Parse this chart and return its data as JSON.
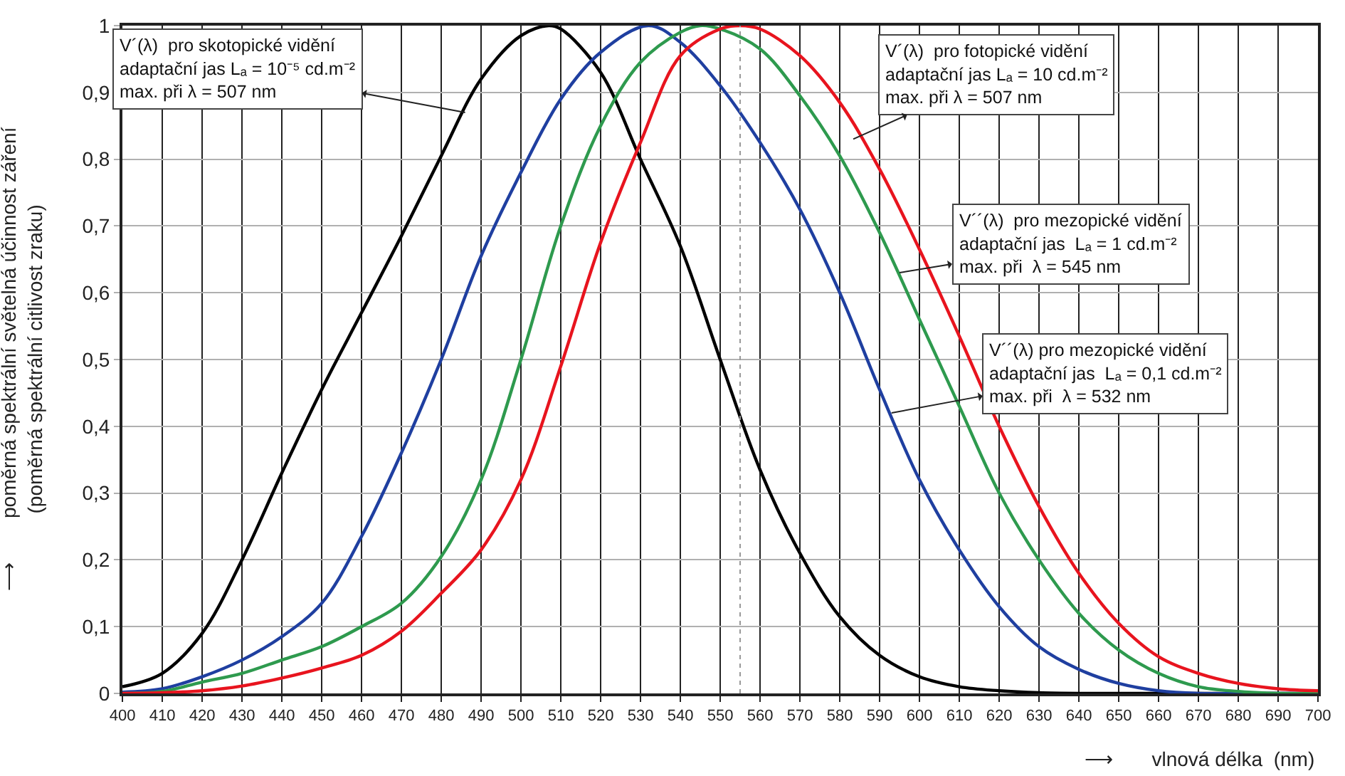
{
  "chart_data": {
    "type": "line",
    "xlabel": "⟶       vlnová délka  (nm)",
    "ylabel": "⟶        poměrná spektrální světelná účinnost záření\n(poměrná spektrální citlivost zraku)",
    "series": [
      {
        "color": "#000000",
        "x": [
          400,
          410,
          420,
          430,
          440,
          450,
          460,
          470,
          480,
          490,
          500,
          507,
          510,
          520,
          530,
          540,
          550,
          560,
          570,
          580,
          590,
          600,
          610,
          620,
          630,
          640,
          650,
          660,
          670,
          680,
          690,
          700
        ],
        "values": [
          0.01,
          0.03,
          0.09,
          0.2,
          0.33,
          0.455,
          0.57,
          0.685,
          0.805,
          0.92,
          0.985,
          1.0,
          0.995,
          0.93,
          0.8,
          0.67,
          0.5,
          0.335,
          0.21,
          0.115,
          0.057,
          0.025,
          0.01,
          0.004,
          0.001,
          0,
          0,
          0,
          0,
          0,
          0,
          0
        ]
      },
      {
        "color": "#1f3fa0",
        "x": [
          400,
          410,
          420,
          430,
          440,
          450,
          460,
          470,
          480,
          490,
          500,
          510,
          520,
          532,
          540,
          550,
          560,
          570,
          580,
          590,
          600,
          610,
          620,
          630,
          640,
          650,
          660,
          670,
          680,
          690,
          700
        ],
        "values": [
          0.002,
          0.007,
          0.025,
          0.05,
          0.085,
          0.135,
          0.235,
          0.36,
          0.5,
          0.655,
          0.78,
          0.89,
          0.96,
          1.0,
          0.975,
          0.91,
          0.825,
          0.725,
          0.6,
          0.455,
          0.32,
          0.215,
          0.13,
          0.07,
          0.036,
          0.015,
          0.004,
          0,
          0,
          0,
          0
        ]
      },
      {
        "color": "#2e9a4e",
        "x": [
          400,
          410,
          420,
          430,
          440,
          450,
          460,
          470,
          480,
          490,
          500,
          510,
          520,
          530,
          540,
          545,
          550,
          560,
          570,
          580,
          590,
          600,
          610,
          620,
          630,
          640,
          650,
          660,
          670,
          680,
          690,
          700
        ],
        "values": [
          0,
          0.003,
          0.017,
          0.03,
          0.05,
          0.07,
          0.1,
          0.135,
          0.205,
          0.32,
          0.5,
          0.7,
          0.85,
          0.945,
          0.99,
          1.0,
          0.995,
          0.965,
          0.895,
          0.805,
          0.69,
          0.56,
          0.43,
          0.3,
          0.2,
          0.12,
          0.065,
          0.03,
          0.01,
          0.003,
          0,
          0
        ]
      },
      {
        "color": "#e8141e",
        "x": [
          400,
          410,
          420,
          430,
          440,
          450,
          460,
          470,
          480,
          490,
          500,
          510,
          520,
          530,
          540,
          550,
          555,
          560,
          570,
          580,
          590,
          600,
          610,
          620,
          630,
          640,
          650,
          660,
          670,
          680,
          690,
          700
        ],
        "values": [
          0,
          0.001,
          0.004,
          0.011,
          0.023,
          0.038,
          0.057,
          0.093,
          0.15,
          0.215,
          0.32,
          0.49,
          0.675,
          0.825,
          0.955,
          0.995,
          1.0,
          0.995,
          0.955,
          0.885,
          0.785,
          0.665,
          0.535,
          0.4,
          0.28,
          0.18,
          0.105,
          0.055,
          0.03,
          0.015,
          0.007,
          0.004
        ]
      }
    ],
    "xlim": [
      400,
      700
    ],
    "xticks": [
      400,
      410,
      420,
      430,
      440,
      450,
      460,
      470,
      480,
      490,
      500,
      510,
      520,
      530,
      540,
      550,
      560,
      570,
      580,
      590,
      600,
      610,
      620,
      630,
      640,
      650,
      660,
      670,
      680,
      690,
      700
    ],
    "ylim": [
      0,
      1
    ],
    "yticks": [
      0,
      {
        "value": 0.1,
        "label": "0,1"
      },
      {
        "value": 0.2,
        "label": "0,2"
      },
      {
        "value": 0.3,
        "label": "0,3"
      },
      {
        "value": 0.4,
        "label": "0,4"
      },
      {
        "value": 0.5,
        "label": "0,5"
      },
      {
        "value": 0.6,
        "label": "0,6"
      },
      {
        "value": 0.7,
        "label": "0,7"
      },
      {
        "value": 0.8,
        "label": "0,8"
      },
      {
        "value": 0.9,
        "label": "0,9"
      },
      1
    ],
    "grid": true,
    "marker": "none",
    "line_style": "solid",
    "ref_lines": [
      {
        "axis": "x",
        "value": 555,
        "label": null,
        "color": "#999999",
        "line_style": "dotted"
      }
    ],
    "annotations": [
      {
        "text": "V´(λ)  pro skotopické vidění\nadaptační jas Lₐ = 10⁻⁵ cd.m⁻²\nmax. při λ = 507 nm",
        "x": 486,
        "y": 0.87
      },
      {
        "text": "V´(λ)  pro fotopické vidění\nadaptační jas Lₐ = 10 cd.m⁻²\nmax. při λ = 507 nm",
        "x": 583.4,
        "y": 0.83
      },
      {
        "text": "V´´(λ)  pro mezopické vidění\nadaptační jas  Lₐ = 1 cd.m⁻²\nmax. při  λ = 545 nm",
        "x": 595,
        "y": 0.63
      },
      {
        "text": "V´´(λ) pro mezopické vidění\nadaptační jas  Lₐ = 0,1 cd.m⁻²\nmax. při  λ = 532 nm",
        "x": 593,
        "y": 0.42
      }
    ]
  }
}
